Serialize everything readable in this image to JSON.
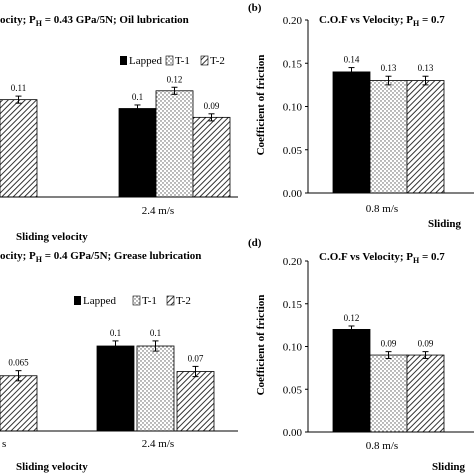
{
  "colors": {
    "lapped": "#000000",
    "t1_dots": "#555555",
    "t2_hatch": "#333333",
    "axis": "#000000"
  },
  "chart_data": [
    {
      "panel": "",
      "type": "bar",
      "title": "ocity; P",
      "title_sub": "H",
      "title_rest": " = 0.43 GPa/5N; Oil lubrication",
      "legend": [
        "Lapped",
        "T-1",
        "T-2"
      ],
      "categories": [
        "",
        "2.4 m/s"
      ],
      "series": [
        {
          "name": "Lapped",
          "values": [
            null,
            0.1
          ],
          "labels": [
            "",
            "0.1"
          ]
        },
        {
          "name": "T-1",
          "values": [
            null,
            0.12
          ],
          "labels": [
            "",
            "0.12"
          ]
        },
        {
          "name": "T-2",
          "values": [
            0.11,
            0.09
          ],
          "labels": [
            "0.11",
            "0.09"
          ]
        }
      ],
      "xlabel": "Sliding  velocity",
      "ylabel": "",
      "ylim": [
        0,
        0.2
      ]
    },
    {
      "panel": "(b)",
      "type": "bar",
      "title": "C.O.F vs Velocity; P",
      "title_sub": "H",
      "title_rest": " = 0.7",
      "categories": [
        "0.8 m/s"
      ],
      "series": [
        {
          "name": "Lapped",
          "values": [
            0.14
          ],
          "labels": [
            "0.14"
          ]
        },
        {
          "name": "T-1",
          "values": [
            0.13
          ],
          "labels": [
            "0.13"
          ]
        },
        {
          "name": "T-2",
          "values": [
            0.13
          ],
          "labels": [
            "0.13"
          ]
        }
      ],
      "yticks": [
        "0.00",
        "0.05",
        "0.10",
        "0.15",
        "0.20"
      ],
      "xlabel": "Sliding",
      "ylabel": "Coefficient of friction",
      "ylim": [
        0,
        0.2
      ]
    },
    {
      "panel": "",
      "type": "bar",
      "title": "ocity; P",
      "title_sub": "H",
      "title_rest": " = 0.4 GPa/5N; Grease lubrication",
      "legend": [
        "Lapped",
        "T-1",
        "T-2"
      ],
      "categories": [
        "s",
        "2.4 m/s"
      ],
      "series": [
        {
          "name": "Lapped",
          "values": [
            null,
            0.1
          ],
          "labels": [
            "",
            "0.1"
          ]
        },
        {
          "name": "T-1",
          "values": [
            null,
            0.1
          ],
          "labels": [
            "",
            "0.1"
          ]
        },
        {
          "name": "T-2",
          "values": [
            0.065,
            0.07
          ],
          "labels": [
            "0.065",
            "0.07"
          ]
        }
      ],
      "xlabel": "Sliding  velocity",
      "ylabel": "",
      "ylim": [
        0,
        0.2
      ]
    },
    {
      "panel": "(d)",
      "type": "bar",
      "title": "C.O.F vs Velocity; P",
      "title_sub": "H",
      "title_rest": " = 0.7",
      "categories": [
        "0.8 m/s"
      ],
      "series": [
        {
          "name": "Lapped",
          "values": [
            0.12
          ],
          "labels": [
            "0.12"
          ]
        },
        {
          "name": "T-1",
          "values": [
            0.09
          ],
          "labels": [
            "0.09"
          ]
        },
        {
          "name": "T-2",
          "values": [
            0.09
          ],
          "labels": [
            "0.09"
          ]
        }
      ],
      "yticks": [
        "0.00",
        "0.05",
        "0.10",
        "0.15",
        "0.20"
      ],
      "xlabel": "Sliding",
      "ylabel": "Coefficient of friction",
      "ylim": [
        0,
        0.2
      ]
    }
  ]
}
